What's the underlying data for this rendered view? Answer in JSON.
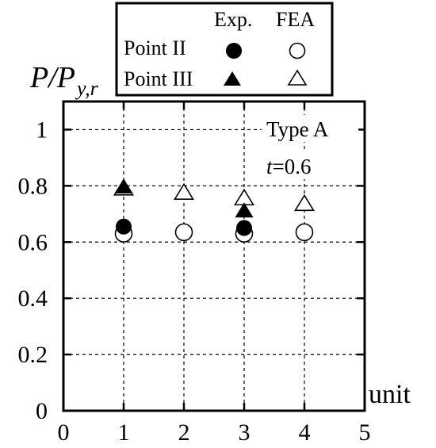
{
  "chart_data": {
    "type": "scatter",
    "ylabel": {
      "main": "P/P",
      "sub": "y,r"
    },
    "xlabel": "unit",
    "xlim": [
      0,
      5
    ],
    "ylim": [
      0,
      1.1
    ],
    "xticks": [
      "0",
      "1",
      "2",
      "3",
      "4",
      "5"
    ],
    "yticks": [
      "0",
      "0.2",
      "0.4",
      "0.6",
      "0.8",
      "1"
    ],
    "grid": true,
    "legend": {
      "placement": "top, above plot",
      "col_headers": [
        "Exp.",
        "FEA"
      ],
      "rows": [
        {
          "label": "Point II",
          "marker": "circle"
        },
        {
          "label": "Point III",
          "marker": "triangle"
        }
      ]
    },
    "annotations": {
      "type_label": "Type A",
      "t_symbol": "t",
      "t_value": "=0.6"
    },
    "series": [
      {
        "name": "Point II FEA",
        "marker": "circle-open",
        "x": [
          1,
          2,
          3,
          4
        ],
        "y": [
          0.63,
          0.635,
          0.63,
          0.635
        ]
      },
      {
        "name": "Point III FEA",
        "marker": "triangle-open",
        "x": [
          1,
          2,
          3,
          4
        ],
        "y": [
          0.79,
          0.775,
          0.755,
          0.735
        ]
      },
      {
        "name": "Point II Exp.",
        "marker": "circle-filled",
        "x": [
          1,
          3
        ],
        "y": [
          0.655,
          0.65
        ]
      },
      {
        "name": "Point III Exp.",
        "marker": "triangle-filled",
        "x": [
          1,
          3
        ],
        "y": [
          0.795,
          0.71
        ]
      }
    ]
  }
}
